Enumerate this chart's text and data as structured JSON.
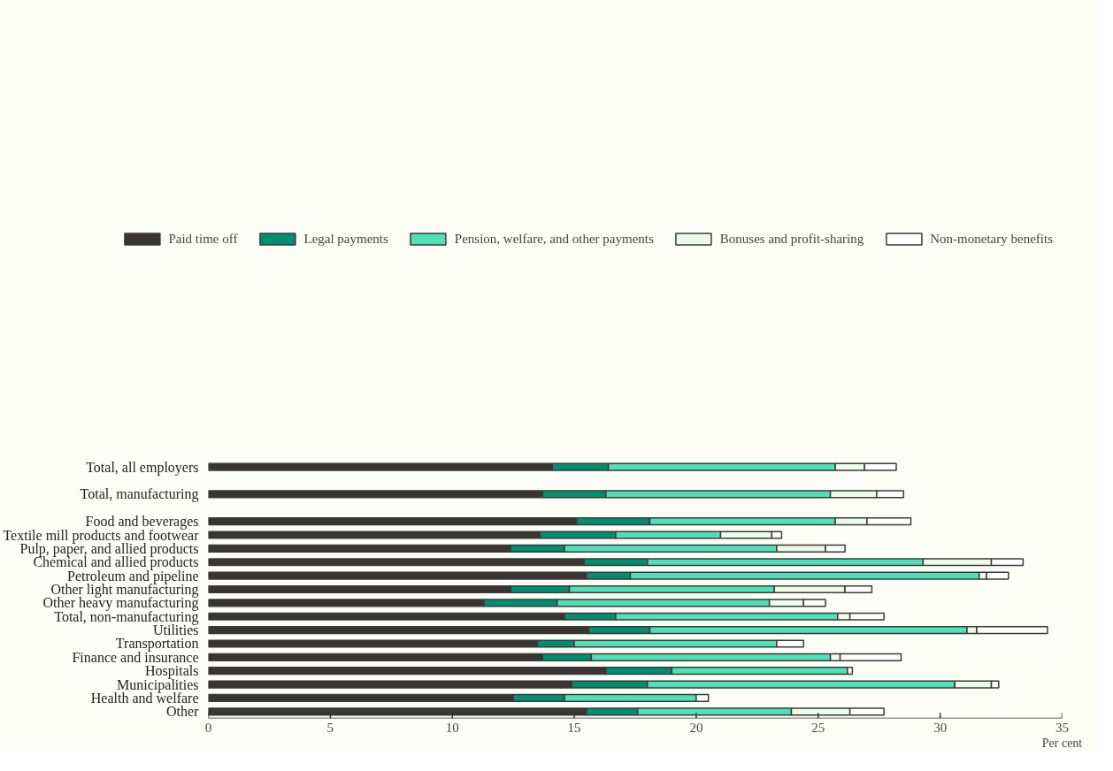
{
  "chart_data": {
    "type": "bar",
    "orientation": "horizontal",
    "stacked": true,
    "categories": [
      "Total, all employers",
      null,
      "Total, manufacturing",
      null,
      "Food and beverages",
      "Textile mill products and footwear",
      "Pulp, paper, and allied products",
      "Chemical and allied products",
      "Petroleum and pipeline",
      "Other light manufacturing",
      "Other heavy manufacturing",
      "Total, non-manufacturing",
      "Utilities",
      "Transportation",
      "Finance and insurance",
      "Hospitals",
      "Municipalities",
      "Health and welfare",
      "Other"
    ],
    "series": [
      {
        "name": "Paid time off",
        "color": "#3a3432",
        "values": [
          14.1,
          null,
          13.7,
          null,
          15.1,
          13.6,
          12.4,
          15.4,
          15.5,
          12.4,
          11.3,
          14.6,
          15.6,
          13.5,
          13.7,
          16.3,
          14.9,
          12.5,
          15.5
        ]
      },
      {
        "name": "Legal payments",
        "color": "#008f6f",
        "values": [
          2.3,
          null,
          2.6,
          null,
          3.0,
          3.1,
          2.2,
          2.6,
          1.8,
          2.4,
          3.0,
          2.1,
          2.5,
          1.5,
          2.0,
          2.7,
          3.1,
          2.1,
          2.1
        ]
      },
      {
        "name": "Pension, welfare, and other payments",
        "color": "#4fe0b8",
        "values": [
          9.3,
          null,
          9.2,
          null,
          7.6,
          4.3,
          8.7,
          11.3,
          14.3,
          8.4,
          8.7,
          9.1,
          13.0,
          8.3,
          9.8,
          7.2,
          12.6,
          5.4,
          6.3
        ]
      },
      {
        "name": "Bonuses and profit-sharing",
        "color": "#eefbe8",
        "values": [
          1.2,
          null,
          1.9,
          null,
          1.3,
          2.1,
          2.0,
          2.8,
          0.3,
          2.9,
          1.4,
          0.5,
          0.4,
          0,
          0.4,
          0,
          1.5,
          0,
          2.4
        ]
      },
      {
        "name": "Non-monetary benefits",
        "color": "#ffffff",
        "values": [
          1.3,
          null,
          1.1,
          null,
          1.8,
          0.4,
          0.8,
          1.3,
          0.9,
          1.1,
          0.9,
          1.4,
          2.9,
          1.1,
          2.5,
          0.2,
          0.3,
          0.5,
          1.4
        ]
      }
    ],
    "xlabel": "Per cent",
    "xlim": [
      0,
      35
    ],
    "xticks": [
      0,
      5,
      10,
      15,
      20,
      25,
      30,
      35
    ],
    "grid": false,
    "legend": "top"
  }
}
